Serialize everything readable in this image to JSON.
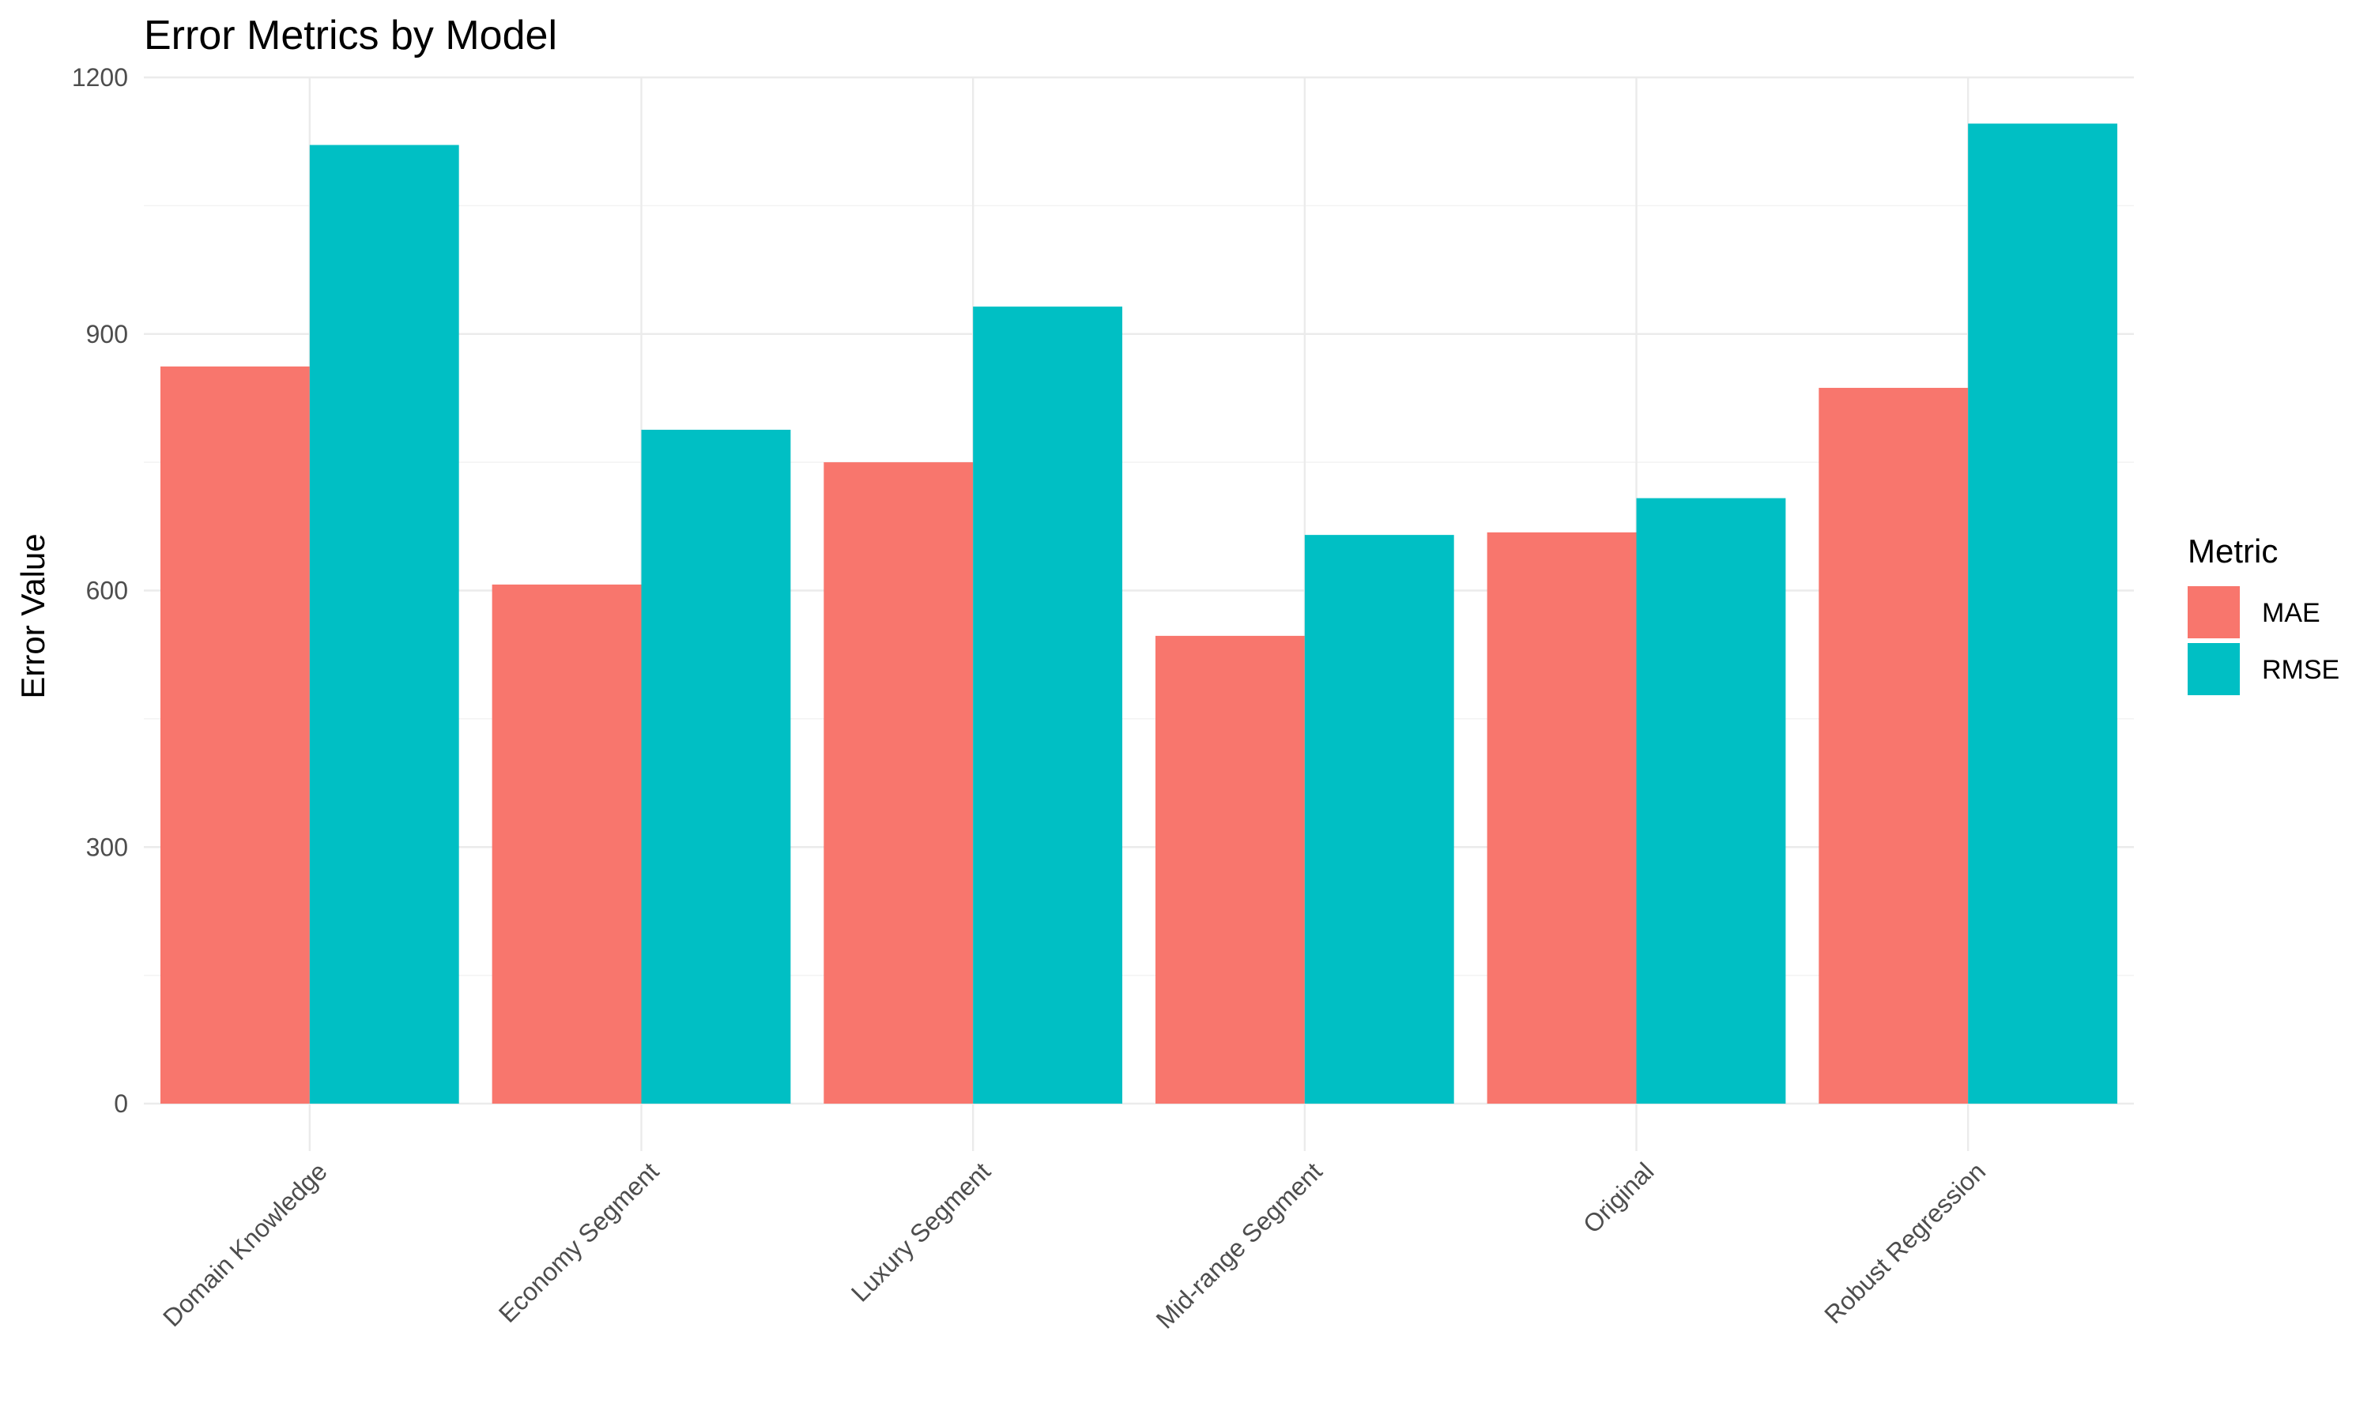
{
  "chart_data": {
    "type": "bar",
    "title": "Error Metrics by Model",
    "xlabel": "",
    "ylabel": "Error Value",
    "ylim": [
      0,
      1200
    ],
    "yticks": [
      "0",
      "300",
      "600",
      "900",
      "1200"
    ],
    "categories": [
      "Domain Knowledge",
      "Economy Segment",
      "Luxury Segment",
      "Mid-range Segment",
      "Original",
      "Robust Regression"
    ],
    "series": [
      {
        "name": "MAE",
        "color": "#F8766D",
        "values": [
          862,
          607,
          750,
          547,
          668,
          837
        ]
      },
      {
        "name": "RMSE",
        "color": "#00BFC4",
        "values": [
          1121,
          788,
          932,
          665,
          708,
          1146
        ]
      }
    ],
    "legend": {
      "title": "Metric",
      "position": "right"
    },
    "grid": true
  }
}
